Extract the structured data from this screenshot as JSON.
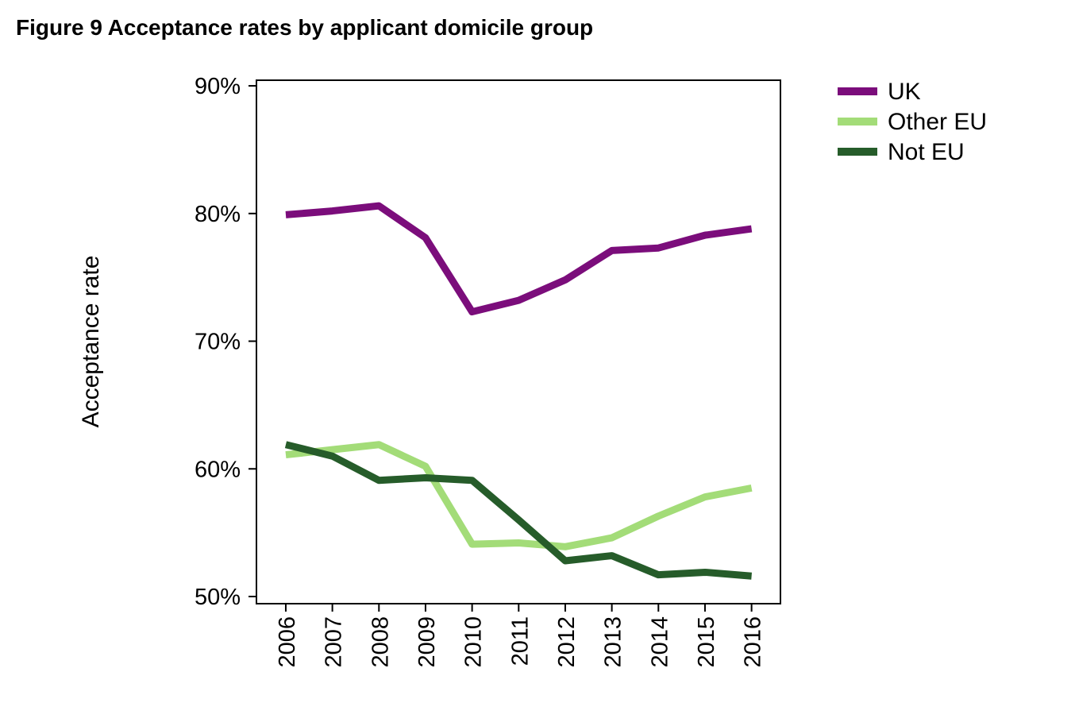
{
  "chart_data": {
    "type": "line",
    "title": "Figure 9 Acceptance rates by applicant domicile group",
    "y_label": "Acceptance rate",
    "x": [
      2006,
      2007,
      2008,
      2009,
      2010,
      2011,
      2012,
      2013,
      2014,
      2015,
      2016
    ],
    "xlim": [
      2005.37,
      2016.62
    ],
    "xticks": [
      2006,
      2007,
      2008,
      2009,
      2010,
      2011,
      2012,
      2013,
      2014,
      2015,
      2016
    ],
    "ylim": [
      49.44,
      90.44
    ],
    "yticks": [
      {
        "value": 50,
        "label": "50%"
      },
      {
        "value": 60,
        "label": "60%"
      },
      {
        "value": 70,
        "label": "70%"
      },
      {
        "value": 80,
        "label": "80%"
      },
      {
        "value": 90,
        "label": "90%"
      }
    ],
    "legend": "outside-top-right",
    "series": [
      {
        "name": "UK",
        "color": "#7b0d7b",
        "values": [
          79.9,
          80.2,
          80.6,
          78.1,
          72.3,
          73.2,
          74.8,
          77.1,
          77.3,
          78.3,
          78.8
        ]
      },
      {
        "name": "Other EU",
        "color": "#a3dc78",
        "values": [
          61.1,
          61.5,
          61.9,
          60.2,
          54.1,
          54.2,
          53.9,
          54.6,
          56.3,
          57.8,
          58.5
        ]
      },
      {
        "name": "Not EU",
        "color": "#265c2a",
        "values": [
          61.9,
          61.0,
          59.1,
          59.3,
          59.1,
          56.0,
          52.8,
          53.2,
          51.7,
          51.9,
          51.6
        ]
      }
    ]
  }
}
